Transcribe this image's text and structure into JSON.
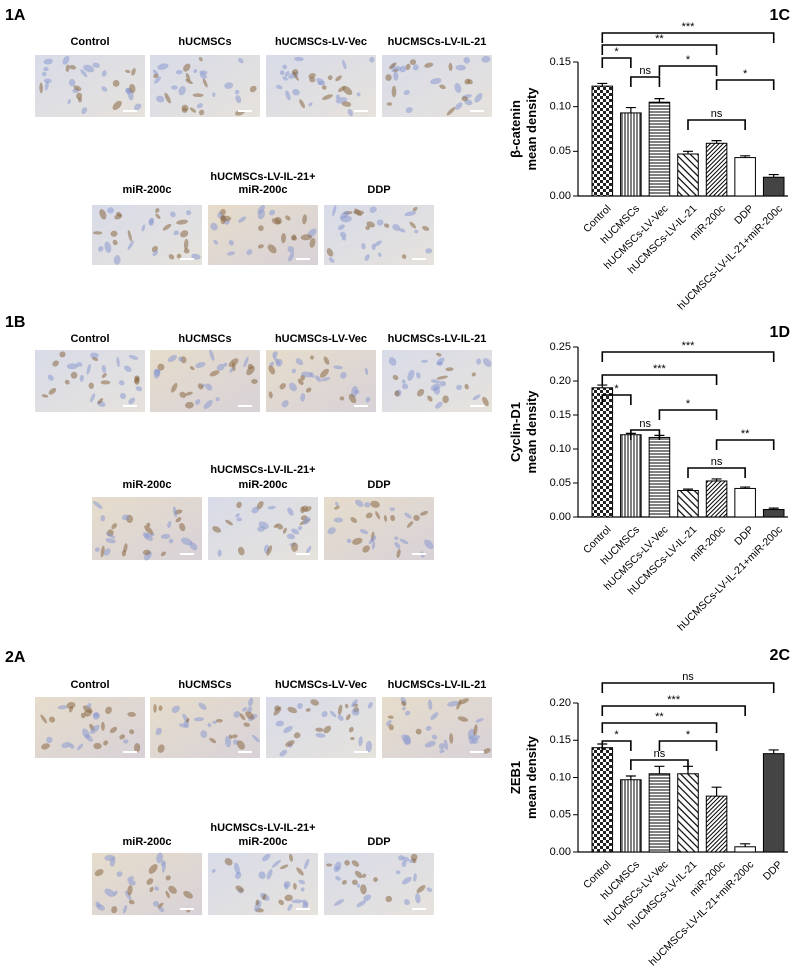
{
  "image_panels": [
    {
      "label": "1A",
      "row1": [
        "Control",
        "hUCMSCs",
        "hUCMSCs-LV-Vec",
        "hUCMSCs-LV-IL-21"
      ],
      "row2": [
        [
          "miR-200c"
        ],
        [
          "hUCMSCs-LV-IL-21+",
          "miR-200c"
        ],
        [
          "DDP"
        ]
      ]
    },
    {
      "label": "1B",
      "row1": [
        "Control",
        "hUCMSCs",
        "hUCMSCs-LV-Vec",
        "hUCMSCs-LV-IL-21"
      ],
      "row2": [
        [
          "miR-200c"
        ],
        [
          "hUCMSCs-LV-IL-21+",
          "miR-200c"
        ],
        [
          "DDP"
        ]
      ]
    },
    {
      "label": "2A",
      "row1": [
        "Control",
        "hUCMSCs",
        "hUCMSCs-LV-Vec",
        "hUCMSCs-LV-IL-21"
      ],
      "row2": [
        [
          "miR-200c"
        ],
        [
          "hUCMSCs-LV-IL-21+",
          "miR-200c"
        ],
        [
          "DDP"
        ]
      ]
    }
  ],
  "chart_data": [
    {
      "type": "bar",
      "title": "1C",
      "ylabel": [
        "β-catenin",
        "mean density"
      ],
      "categories": [
        "Control",
        "hUCMSCs",
        "hUCMSCs-LV-Vec",
        "hUCMSCs-LV-IL-21",
        "miR-200c",
        "DDP",
        "hUCMSCs-LV-IL-21+miR-200c"
      ],
      "values": [
        0.123,
        0.093,
        0.105,
        0.047,
        0.059,
        0.043,
        0.021
      ],
      "errors": [
        0.003,
        0.006,
        0.004,
        0.003,
        0.003,
        0.002,
        0.003
      ],
      "ylim": [
        0,
        0.15
      ],
      "yticks": [
        {
          "value": 0,
          "label": "0.00"
        },
        {
          "value": 0.05,
          "label": "0.05"
        },
        {
          "value": 0.1,
          "label": "0.10"
        },
        {
          "value": 0.15,
          "label": "0.15"
        }
      ],
      "annotations": [
        {
          "text": "***",
          "pair": [
            0,
            6
          ]
        },
        {
          "text": "**",
          "pair": [
            0,
            4
          ]
        },
        {
          "text": "*",
          "pair": [
            0,
            1
          ]
        },
        {
          "text": "*",
          "pair": [
            2,
            4
          ]
        },
        {
          "text": "ns",
          "pair": [
            1,
            2
          ]
        },
        {
          "text": "*",
          "pair": [
            4,
            6
          ]
        },
        {
          "text": "ns",
          "pair": [
            3,
            5
          ]
        }
      ]
    },
    {
      "type": "bar",
      "title": "1D",
      "ylabel": [
        "Cyclin-D1",
        "mean density"
      ],
      "categories": [
        "Control",
        "hUCMSCs",
        "hUCMSCs-LV-Vec",
        "hUCMSCs-LV-IL-21",
        "miR-200c",
        "DDP",
        "hUCMSCs-LV-IL-21+miR-200c"
      ],
      "values": [
        0.19,
        0.121,
        0.117,
        0.039,
        0.053,
        0.042,
        0.011
      ],
      "errors": [
        0.004,
        0.002,
        0.003,
        0.002,
        0.003,
        0.002,
        0.002
      ],
      "ylim": [
        0,
        0.25
      ],
      "yticks": [
        {
          "value": 0,
          "label": "0.00"
        },
        {
          "value": 0.05,
          "label": "0.05"
        },
        {
          "value": 0.1,
          "label": "0.10"
        },
        {
          "value": 0.15,
          "label": "0.15"
        },
        {
          "value": 0.2,
          "label": "0.20"
        },
        {
          "value": 0.25,
          "label": "0.25"
        }
      ],
      "annotations": [
        {
          "text": "***",
          "pair": [
            0,
            6
          ]
        },
        {
          "text": "***",
          "pair": [
            0,
            4
          ]
        },
        {
          "text": "*",
          "pair": [
            0,
            1
          ]
        },
        {
          "text": "*",
          "pair": [
            2,
            4
          ]
        },
        {
          "text": "ns",
          "pair": [
            1,
            2
          ]
        },
        {
          "text": "**",
          "pair": [
            4,
            6
          ]
        },
        {
          "text": "ns",
          "pair": [
            3,
            5
          ]
        }
      ]
    },
    {
      "type": "bar",
      "title": "2C",
      "ylabel": [
        "ZEB1",
        "mean density"
      ],
      "categories": [
        "Control",
        "hUCMSCs",
        "hUCMSCs-LV-Vec",
        "hUCMSCs-LV-IL-21",
        "miR-200c",
        "hUCMSCs-LV-IL-21+miR-200c",
        "DDP"
      ],
      "values": [
        0.14,
        0.097,
        0.105,
        0.105,
        0.075,
        0.007,
        0.132
      ],
      "errors": [
        0.005,
        0.005,
        0.01,
        0.01,
        0.012,
        0.004,
        0.005
      ],
      "ylim": [
        0,
        0.2
      ],
      "yticks": [
        {
          "value": 0,
          "label": "0.00"
        },
        {
          "value": 0.05,
          "label": "0.05"
        },
        {
          "value": 0.1,
          "label": "0.10"
        },
        {
          "value": 0.15,
          "label": "0.15"
        },
        {
          "value": 0.2,
          "label": "0.20"
        }
      ],
      "annotations": [
        {
          "text": "ns",
          "pair": [
            0,
            6
          ]
        },
        {
          "text": "***",
          "pair": [
            0,
            5
          ]
        },
        {
          "text": "**",
          "pair": [
            0,
            4
          ]
        },
        {
          "text": "*",
          "pair": [
            0,
            1
          ]
        },
        {
          "text": "*",
          "pair": [
            2,
            4
          ]
        },
        {
          "text": "ns",
          "pair": [
            1,
            3
          ]
        }
      ]
    }
  ]
}
